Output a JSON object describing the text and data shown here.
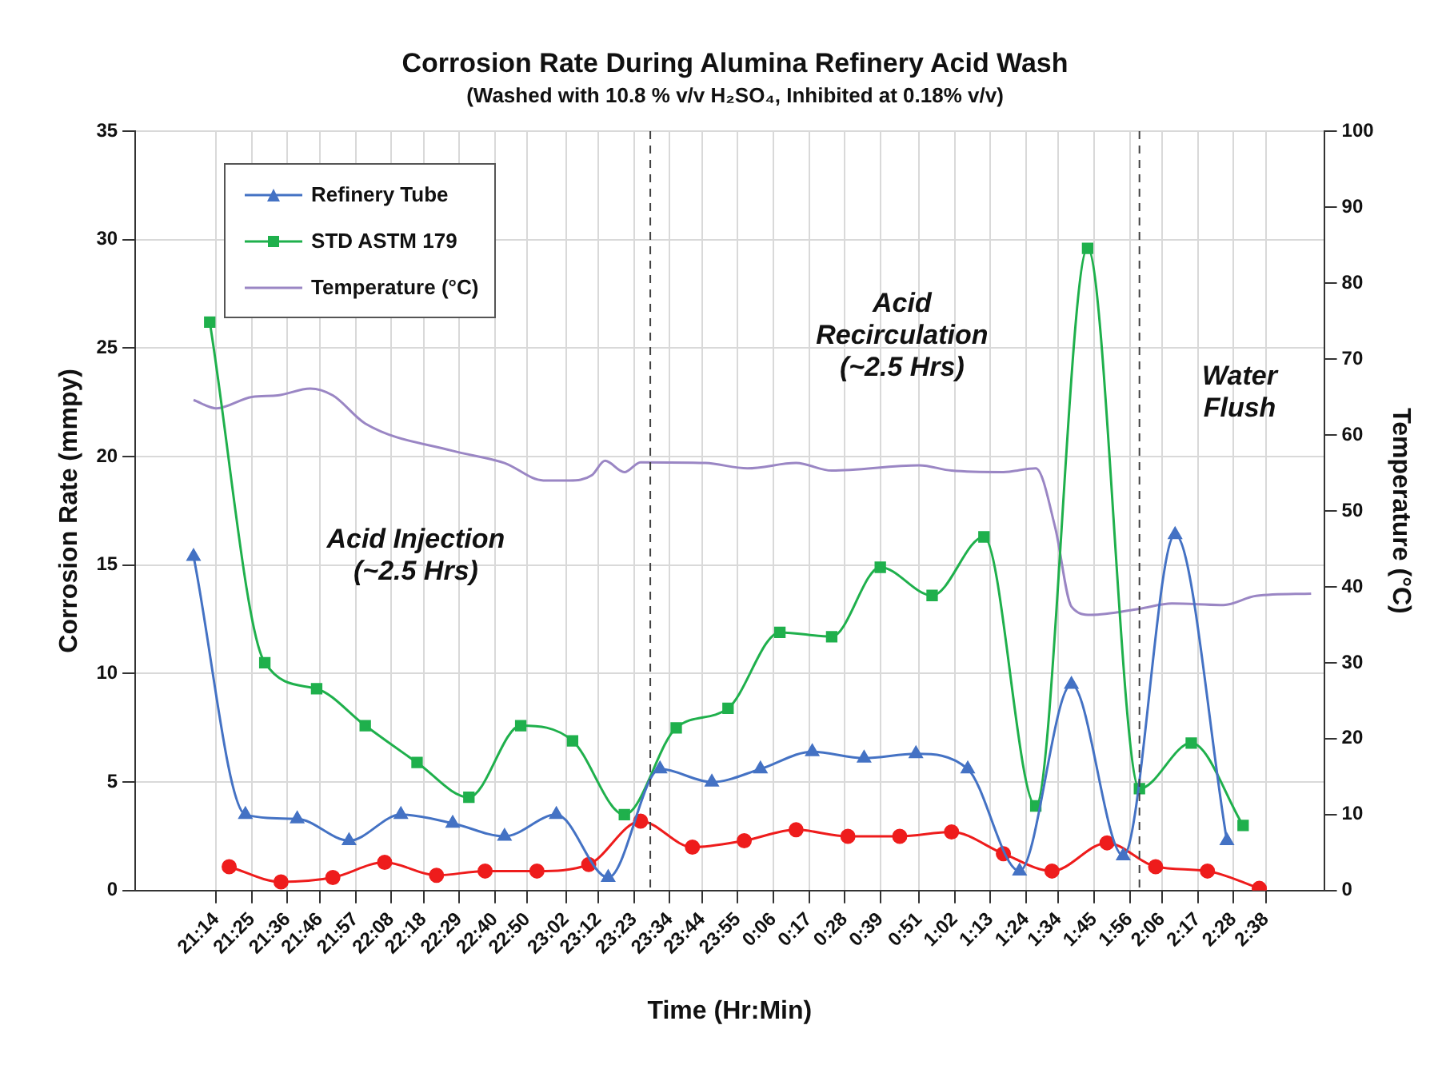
{
  "chart_data": {
    "type": "line",
    "title": "Corrosion Rate During Alumina Refinery Acid Wash",
    "subtitle": "(Washed with 10.8 % v/v H₂SO₄, Inhibited at 0.18% v/v)",
    "xlabel": "Time (Hr:Min)",
    "ylabel": "Corrosion Rate (mmpy)",
    "y2label": "Temperature (°C)",
    "xlim": [
      "--01-01T20:49",
      "--01-02T02:56"
    ],
    "xticks": [
      {
        "value": "--01-01T21:14",
        "label": "21:14"
      },
      {
        "value": "--01-01T21:25",
        "label": "21:25"
      },
      {
        "value": "--01-01T21:36",
        "label": "21:36"
      },
      {
        "value": "--01-01T21:46",
        "label": "21:46"
      },
      {
        "value": "--01-01T21:57",
        "label": "21:57"
      },
      {
        "value": "--01-01T22:08",
        "label": "22:08"
      },
      {
        "value": "--01-01T22:18",
        "label": "22:18"
      },
      {
        "value": "--01-01T22:29",
        "label": "22:29"
      },
      {
        "value": "--01-01T22:40",
        "label": "22:40"
      },
      {
        "value": "--01-01T22:50",
        "label": "22:50"
      },
      {
        "value": "--01-01T23:02",
        "label": "23:02"
      },
      {
        "value": "--01-01T23:12",
        "label": "23:12"
      },
      {
        "value": "--01-01T23:23",
        "label": "23:23"
      },
      {
        "value": "--01-01T23:34",
        "label": "23:34"
      },
      {
        "value": "--01-01T23:44",
        "label": "23:44"
      },
      {
        "value": "--01-01T23:55",
        "label": "23:55"
      },
      {
        "value": "--01-02T00:06",
        "label": "0:06"
      },
      {
        "value": "--01-02T00:17",
        "label": "0:17"
      },
      {
        "value": "--01-02T00:28",
        "label": "0:28"
      },
      {
        "value": "--01-02T00:39",
        "label": "0:39"
      },
      {
        "value": "--01-02T00:51",
        "label": "0:51"
      },
      {
        "value": "--01-02T01:02",
        "label": "1:02"
      },
      {
        "value": "--01-02T01:13",
        "label": "1:13"
      },
      {
        "value": "--01-02T01:24",
        "label": "1:24"
      },
      {
        "value": "--01-02T01:34",
        "label": "1:34"
      },
      {
        "value": "--01-02T01:45",
        "label": "1:45"
      },
      {
        "value": "--01-02T01:56",
        "label": "1:56"
      },
      {
        "value": "--01-02T02:06",
        "label": "2:06"
      },
      {
        "value": "--01-02T02:17",
        "label": "2:17"
      },
      {
        "value": "--01-02T02:28",
        "label": "2:28"
      },
      {
        "value": "--01-02T02:38",
        "label": "2:38"
      }
    ],
    "ylim": [
      0,
      35
    ],
    "yticks": [
      0,
      5,
      10,
      15,
      20,
      25,
      30,
      35
    ],
    "y2lim": [
      0,
      100
    ],
    "y2ticks": [
      0,
      10,
      20,
      30,
      40,
      50,
      60,
      70,
      80,
      90,
      100
    ],
    "grid": true,
    "legend": "top left",
    "series": [
      {
        "name": "Refinery Tube",
        "color": "#4472c4",
        "marker": "triangle",
        "x": [
          "--01-01T21:07",
          "--01-01T21:23",
          "--01-01T21:39",
          "--01-01T21:55",
          "--01-01T22:11",
          "--01-01T22:27",
          "--01-01T22:43",
          "--01-01T22:59",
          "--01-01T23:15",
          "--01-01T23:31",
          "--01-01T23:47",
          "--01-02T00:02",
          "--01-02T00:18",
          "--01-02T00:34",
          "--01-02T00:50",
          "--01-02T01:06",
          "--01-02T01:22",
          "--01-02T01:38",
          "--01-02T01:54",
          "--01-02T02:10",
          "--01-02T02:26"
        ],
        "values": [
          15.4,
          3.5,
          3.3,
          2.3,
          3.5,
          3.1,
          2.5,
          3.5,
          0.6,
          5.6,
          5.0,
          5.6,
          6.4,
          6.1,
          6.3,
          5.6,
          0.9,
          9.5,
          1.6,
          16.4,
          2.3
        ]
      },
      {
        "name": "STD ASTM 179",
        "color": "#1fb04c",
        "marker": "square",
        "x": [
          "--01-01T21:12",
          "--01-01T21:29",
          "--01-01T21:45",
          "--01-01T22:00",
          "--01-01T22:16",
          "--01-01T22:32",
          "--01-01T22:48",
          "--01-01T23:04",
          "--01-01T23:20",
          "--01-01T23:36",
          "--01-01T23:52",
          "--01-02T00:08",
          "--01-02T00:24",
          "--01-02T00:39",
          "--01-02T00:55",
          "--01-02T01:11",
          "--01-02T01:27",
          "--01-02T01:43",
          "--01-02T01:59",
          "--01-02T02:15",
          "--01-02T02:31"
        ],
        "values": [
          26.2,
          10.5,
          9.3,
          7.6,
          5.9,
          4.3,
          7.6,
          6.9,
          3.5,
          7.5,
          8.4,
          11.9,
          11.7,
          14.9,
          13.6,
          16.3,
          3.9,
          29.6,
          4.7,
          6.8,
          3.0
        ]
      },
      {
        "color": "#ee1c1c",
        "marker": "circle",
        "x": [
          "--01-01T21:18",
          "--01-01T21:34",
          "--01-01T21:50",
          "--01-01T22:06",
          "--01-01T22:22",
          "--01-01T22:37",
          "--01-01T22:53",
          "--01-01T23:09",
          "--01-01T23:25",
          "--01-01T23:41",
          "--01-01T23:57",
          "--01-02T00:13",
          "--01-02T00:29",
          "--01-02T00:45",
          "--01-02T01:01",
          "--01-02T01:17",
          "--01-02T01:32",
          "--01-02T01:49",
          "--01-02T02:04",
          "--01-02T02:20",
          "--01-02T02:36"
        ],
        "values": [
          1.1,
          0.4,
          0.6,
          1.3,
          0.7,
          0.9,
          0.9,
          1.2,
          3.2,
          2.0,
          2.3,
          2.8,
          2.5,
          2.5,
          2.7,
          1.7,
          0.9,
          2.2,
          1.1,
          0.9,
          0.1
        ]
      },
      {
        "name": "Temperature (°C)",
        "color": "#9a86c4",
        "marker": "none",
        "axis": "y2",
        "x": [
          "--01-01T21:07",
          "--01-01T21:14",
          "--01-01T21:25",
          "--01-01T21:33",
          "--01-01T21:43",
          "--01-01T21:50",
          "--01-01T22:00",
          "--01-01T22:27",
          "--01-01T22:43",
          "--01-01T22:55",
          "--01-01T23:03",
          "--01-01T23:10",
          "--01-01T23:14",
          "--01-01T23:20",
          "--01-01T23:25",
          "--01-01T23:45",
          "--01-01T23:58",
          "--01-02T00:13",
          "--01-02T00:24",
          "--01-02T00:51",
          "--01-02T01:01",
          "--01-02T01:17",
          "--01-02T01:27",
          "--01-02T01:33",
          "--01-02T01:38",
          "--01-02T01:44",
          "--01-02T01:59",
          "--01-02T02:09",
          "--01-02T02:25",
          "--01-02T02:35",
          "--01-02T02:52"
        ],
        "values": [
          64.6,
          63.5,
          65.0,
          65.2,
          66.1,
          65.2,
          61.5,
          57.9,
          56.3,
          54.0,
          54.0,
          54.7,
          56.6,
          55.1,
          56.4,
          56.3,
          55.6,
          56.3,
          55.3,
          56.0,
          55.3,
          55.1,
          55.6,
          47.8,
          37.4,
          36.3,
          37.1,
          37.8,
          37.6,
          38.8,
          39.1
        ]
      }
    ],
    "ref_lines": [
      {
        "axis": "x",
        "value": "--01-01T23:28",
        "color": "#404040",
        "line_style": "dashed"
      },
      {
        "axis": "x",
        "value": "--01-02T01:59",
        "color": "#404040",
        "line_style": "dashed"
      }
    ],
    "annotations": [
      "Acid Injection\n(~2.5 Hrs)",
      "Acid\nRecirculation\n(~2.5 Hrs)",
      "Water\nFlush"
    ]
  }
}
